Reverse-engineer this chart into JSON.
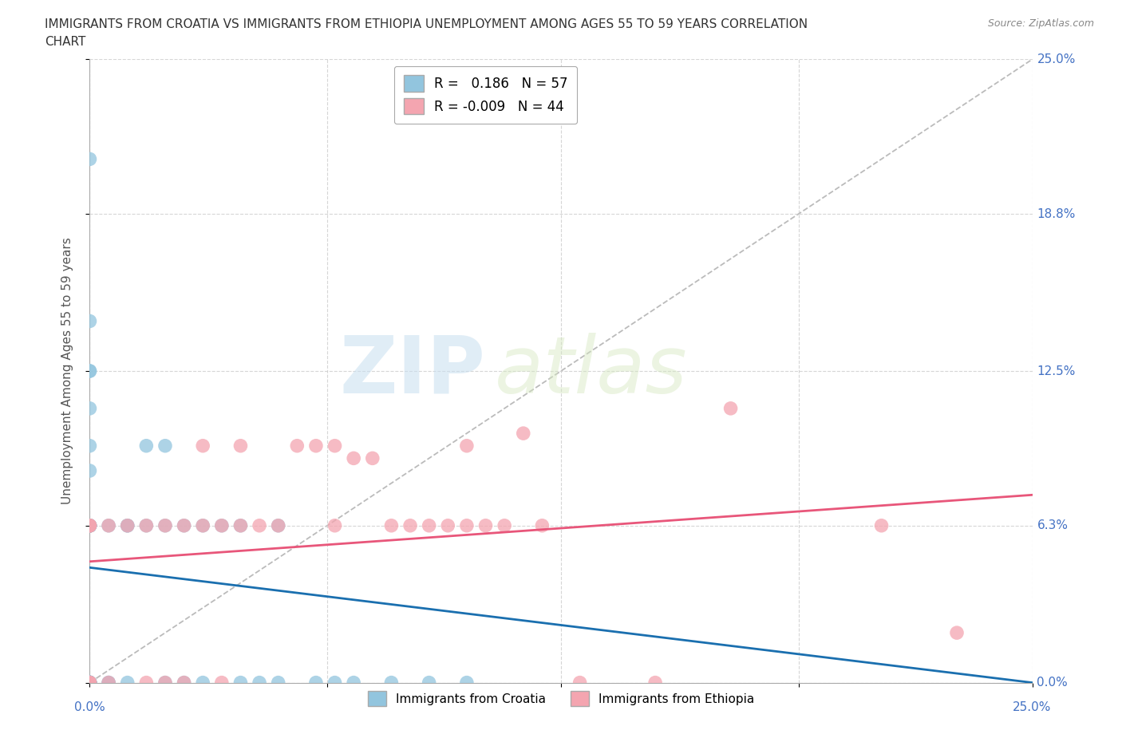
{
  "title_line1": "IMMIGRANTS FROM CROATIA VS IMMIGRANTS FROM ETHIOPIA UNEMPLOYMENT AMONG AGES 55 TO 59 YEARS CORRELATION",
  "title_line2": "CHART",
  "source": "Source: ZipAtlas.com",
  "ylabel": "Unemployment Among Ages 55 to 59 years",
  "xlim": [
    0,
    25
  ],
  "ylim": [
    0,
    25
  ],
  "croatia_R": 0.186,
  "croatia_N": 57,
  "ethiopia_R": -0.009,
  "ethiopia_N": 44,
  "watermark_zip": "ZIP",
  "watermark_atlas": "atlas",
  "croatia_color": "#92c5de",
  "ethiopia_color": "#f4a5b0",
  "croatia_line_color": "#1a6faf",
  "ethiopia_line_color": "#e8567a",
  "background_color": "#ffffff",
  "grid_color": "#cccccc",
  "axis_label_color": "#4472c4",
  "right_tick_labels": [
    "25.0%",
    "18.8%",
    "12.5%",
    "6.3%",
    "0.0%"
  ],
  "right_tick_positions": [
    25.0,
    18.8,
    12.5,
    6.3,
    0.0
  ],
  "tick_positions": [
    0.0,
    6.3,
    12.5,
    18.8,
    25.0
  ],
  "croatia_points_x": [
    0.0,
    0.0,
    0.0,
    0.0,
    0.0,
    0.0,
    0.0,
    0.0,
    0.0,
    0.0,
    0.0,
    0.0,
    0.0,
    0.0,
    0.0,
    0.0,
    0.0,
    0.0,
    0.0,
    0.0,
    0.0,
    0.0,
    0.0,
    0.0,
    0.0,
    0.0,
    0.0,
    0.0,
    0.0,
    0.0,
    0.5,
    0.5,
    0.5,
    1.0,
    1.0,
    1.0,
    1.5,
    1.5,
    2.0,
    2.0,
    2.0,
    2.5,
    2.5,
    3.0,
    3.0,
    3.5,
    4.0,
    4.0,
    4.5,
    5.0,
    5.0,
    6.0,
    6.5,
    7.0,
    8.0,
    9.0,
    10.0
  ],
  "croatia_points_y": [
    0.0,
    0.0,
    0.0,
    0.0,
    0.0,
    0.0,
    0.0,
    0.0,
    0.0,
    0.0,
    0.0,
    0.0,
    0.0,
    0.0,
    0.0,
    0.0,
    6.3,
    6.3,
    6.3,
    6.3,
    6.3,
    6.3,
    6.3,
    8.5,
    9.5,
    11.0,
    12.5,
    12.5,
    14.5,
    21.0,
    0.0,
    0.0,
    6.3,
    0.0,
    6.3,
    6.3,
    6.3,
    9.5,
    0.0,
    6.3,
    9.5,
    0.0,
    6.3,
    0.0,
    6.3,
    6.3,
    0.0,
    6.3,
    0.0,
    0.0,
    6.3,
    0.0,
    0.0,
    0.0,
    0.0,
    0.0,
    0.0
  ],
  "ethiopia_points_x": [
    0.0,
    0.0,
    0.0,
    0.0,
    0.0,
    0.0,
    0.5,
    0.5,
    1.0,
    1.5,
    1.5,
    2.0,
    2.0,
    2.5,
    2.5,
    3.0,
    3.0,
    3.5,
    3.5,
    4.0,
    4.0,
    4.5,
    5.0,
    5.5,
    6.0,
    6.5,
    6.5,
    7.0,
    7.5,
    8.0,
    8.5,
    9.0,
    9.5,
    10.0,
    10.0,
    10.5,
    11.0,
    11.5,
    12.0,
    13.0,
    15.0,
    17.0,
    21.0,
    23.0
  ],
  "ethiopia_points_y": [
    0.0,
    0.0,
    0.0,
    6.3,
    6.3,
    6.3,
    0.0,
    6.3,
    6.3,
    0.0,
    6.3,
    0.0,
    6.3,
    6.3,
    0.0,
    6.3,
    9.5,
    0.0,
    6.3,
    6.3,
    9.5,
    6.3,
    6.3,
    9.5,
    9.5,
    6.3,
    9.5,
    9.0,
    9.0,
    6.3,
    6.3,
    6.3,
    6.3,
    6.3,
    9.5,
    6.3,
    6.3,
    10.0,
    6.3,
    0.0,
    0.0,
    11.0,
    6.3,
    2.0
  ]
}
